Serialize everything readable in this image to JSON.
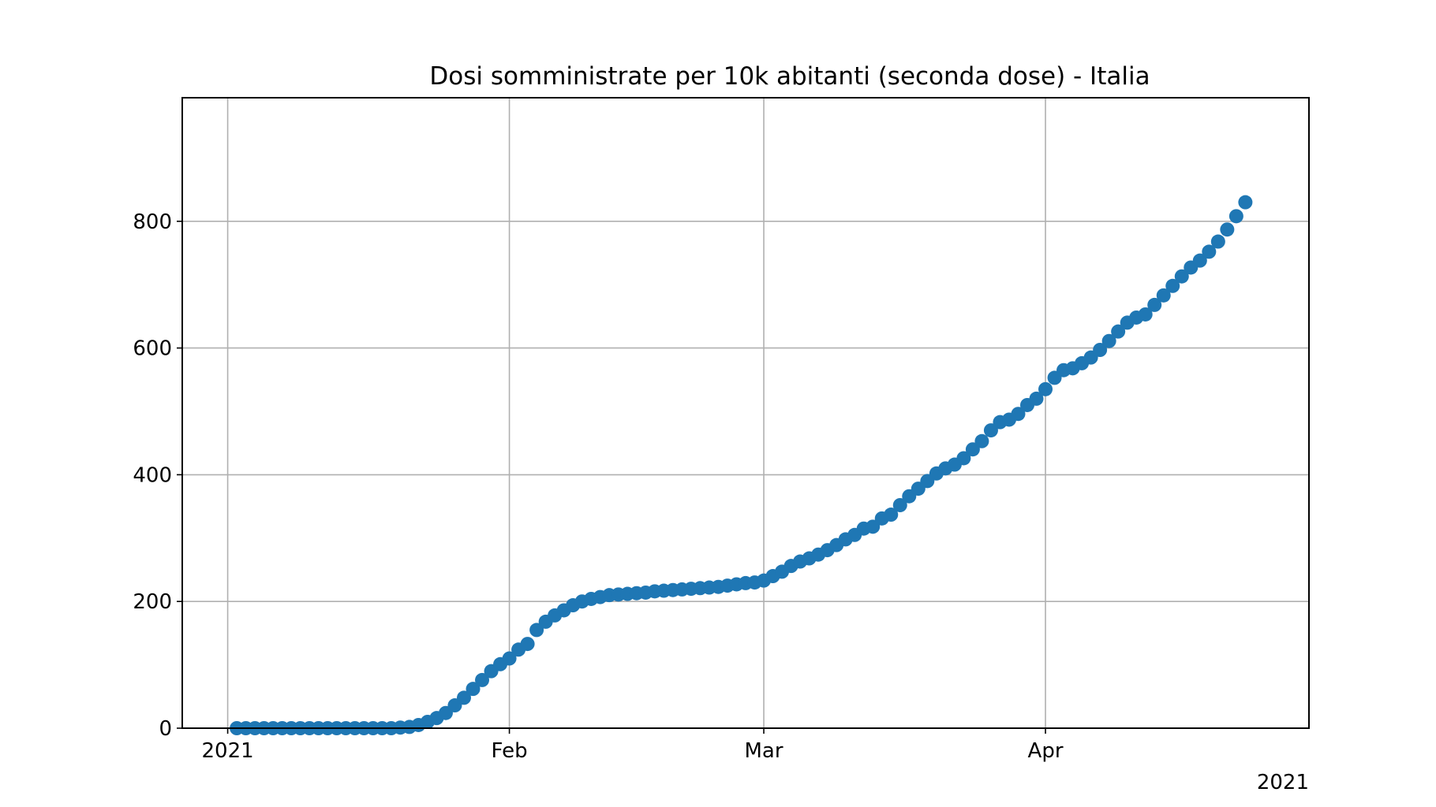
{
  "chart_data": {
    "type": "scatter",
    "title": "Dosi somministrate per 10k abitanti (seconda dose) - Italia",
    "xlabel": "",
    "ylabel": "",
    "x_start": "2021-01-01",
    "x_end": "2021-04-30",
    "xlim": [
      "2020-12-27",
      "2021-04-30"
    ],
    "ylim": [
      0,
      995
    ],
    "x_ticks": [
      {
        "date": "2021-01-01",
        "label": "2021"
      },
      {
        "date": "2021-02-01",
        "label": "Feb"
      },
      {
        "date": "2021-03-01",
        "label": "Mar"
      },
      {
        "date": "2021-04-01",
        "label": "Apr"
      }
    ],
    "x_offset_label": "2021",
    "y_ticks": [
      0,
      200,
      400,
      600,
      800
    ],
    "grid": true,
    "marker_color": "#1f77b4",
    "series": [
      {
        "x": [
          "2021-01-02",
          "2021-01-03",
          "2021-01-04",
          "2021-01-05",
          "2021-01-06",
          "2021-01-07",
          "2021-01-08",
          "2021-01-09",
          "2021-01-10",
          "2021-01-11",
          "2021-01-12",
          "2021-01-13",
          "2021-01-14",
          "2021-01-15",
          "2021-01-16",
          "2021-01-17",
          "2021-01-18",
          "2021-01-19",
          "2021-01-20",
          "2021-01-21",
          "2021-01-22",
          "2021-01-23",
          "2021-01-24",
          "2021-01-25",
          "2021-01-26",
          "2021-01-27",
          "2021-01-28",
          "2021-01-29",
          "2021-01-30",
          "2021-01-31",
          "2021-02-01",
          "2021-02-02",
          "2021-02-03",
          "2021-02-04",
          "2021-02-05",
          "2021-02-06",
          "2021-02-07",
          "2021-02-08",
          "2021-02-09",
          "2021-02-10",
          "2021-02-11",
          "2021-02-12",
          "2021-02-13",
          "2021-02-14",
          "2021-02-15",
          "2021-02-16",
          "2021-02-17",
          "2021-02-18",
          "2021-02-19",
          "2021-02-20",
          "2021-02-21",
          "2021-02-22",
          "2021-02-23",
          "2021-02-24",
          "2021-02-25",
          "2021-02-26",
          "2021-02-27",
          "2021-02-28",
          "2021-03-01",
          "2021-03-02",
          "2021-03-03",
          "2021-03-04",
          "2021-03-05",
          "2021-03-06",
          "2021-03-07",
          "2021-03-08",
          "2021-03-09",
          "2021-03-10",
          "2021-03-11",
          "2021-03-12",
          "2021-03-13",
          "2021-03-14",
          "2021-03-15",
          "2021-03-16",
          "2021-03-17",
          "2021-03-18",
          "2021-03-19",
          "2021-03-20",
          "2021-03-21",
          "2021-03-22",
          "2021-03-23",
          "2021-03-24",
          "2021-03-25",
          "2021-03-26",
          "2021-03-27",
          "2021-03-28",
          "2021-03-29",
          "2021-03-30",
          "2021-03-31",
          "2021-04-01",
          "2021-04-02",
          "2021-04-03",
          "2021-04-04",
          "2021-04-05",
          "2021-04-06",
          "2021-04-07",
          "2021-04-08",
          "2021-04-09",
          "2021-04-10",
          "2021-04-11",
          "2021-04-12",
          "2021-04-13",
          "2021-04-14",
          "2021-04-15",
          "2021-04-16",
          "2021-04-17",
          "2021-04-18",
          "2021-04-19",
          "2021-04-20",
          "2021-04-21",
          "2021-04-22",
          "2021-04-23"
        ],
        "y": [
          0,
          0,
          0,
          0,
          0,
          0,
          0,
          0,
          0,
          0,
          0,
          0,
          0,
          0,
          0,
          0,
          0,
          0,
          1,
          2,
          5,
          10,
          16,
          24,
          36,
          48,
          62,
          76,
          90,
          101,
          110,
          124,
          133,
          155,
          168,
          178,
          186,
          194,
          200,
          204,
          207,
          210,
          211,
          212,
          213,
          214,
          216,
          217,
          218,
          219,
          220,
          221,
          222,
          223,
          225,
          227,
          229,
          230,
          233,
          240,
          247,
          256,
          263,
          268,
          274,
          281,
          289,
          298,
          305,
          315,
          318,
          331,
          337,
          352,
          366,
          378,
          390,
          402,
          410,
          416,
          426,
          440,
          453,
          470,
          483,
          487,
          496,
          510,
          520,
          535,
          553,
          565,
          568,
          576,
          585,
          597,
          611,
          626,
          640,
          648,
          653,
          668,
          683,
          698,
          713,
          727,
          738,
          752,
          768,
          787,
          808,
          830
        ]
      }
    ]
  }
}
